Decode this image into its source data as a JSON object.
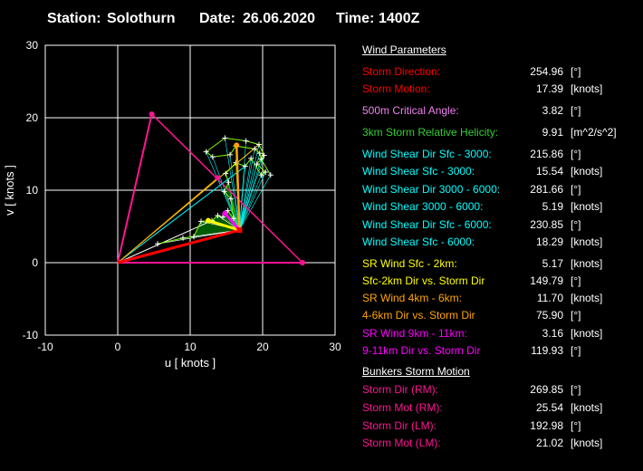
{
  "header": {
    "station_label": "Station:",
    "station": "Solothurn",
    "date_label": "Date:",
    "date": "26.06.2020",
    "time_label": "Time:",
    "time": "1400Z"
  },
  "colors": {
    "red": "#ff0000",
    "crimson": "#ff1493",
    "violet": "#ee82ee",
    "green": "#32cd32",
    "cyan": "#00ffff",
    "yellow": "#ffff00",
    "orange": "#ffa500",
    "magenta": "#ff00ff"
  },
  "wind_parameters": {
    "title": "Wind Parameters",
    "rows": [
      {
        "label": "Storm Direction:",
        "value": "254.96",
        "unit": "[°]",
        "color": "#ff0000"
      },
      {
        "label": "Storm Motion:",
        "value": "17.39",
        "unit": "[knots]",
        "color": "#ff0000"
      },
      {
        "label": "500m Critical Angle:",
        "value": "3.82",
        "unit": "[°]",
        "color": "#ee82ee"
      },
      {
        "label": "3km Storm Relative Helicity:",
        "value": "9.91",
        "unit": "[m^2/s^2]",
        "color": "#32cd32"
      },
      {
        "label": "Wind Shear Dir Sfc - 3000:",
        "value": "215.86",
        "unit": "[°]",
        "color": "#00ffff"
      },
      {
        "label": "Wind Shear Sfc - 3000:",
        "value": "15.54",
        "unit": "[knots]",
        "color": "#00ffff"
      },
      {
        "label": "Wind Shear Dir 3000 - 6000:",
        "value": "281.66",
        "unit": "[°]",
        "color": "#00ffff"
      },
      {
        "label": "Wind Shear 3000 - 6000:",
        "value": "5.19",
        "unit": "[knots]",
        "color": "#00ffff"
      },
      {
        "label": "Wind Shear Dir Sfc - 6000:",
        "value": "230.85",
        "unit": "[°]",
        "color": "#00ffff"
      },
      {
        "label": "Wind Shear Sfc - 6000:",
        "value": "18.29",
        "unit": "[knots]",
        "color": "#00ffff"
      },
      {
        "label": "SR Wind Sfc - 2km:",
        "value": "5.17",
        "unit": "[knots]",
        "color": "#ffff00"
      },
      {
        "label": "Sfc-2km Dir vs. Storm Dir",
        "value": "149.79",
        "unit": "[°]",
        "color": "#ffff00"
      },
      {
        "label": "SR Wind 4km - 6km:",
        "value": "11.70",
        "unit": "[knots]",
        "color": "#ffa500"
      },
      {
        "label": "4-6km Dir vs. Storm Dir",
        "value": "75.90",
        "unit": "[°]",
        "color": "#ffa500"
      },
      {
        "label": "SR Wind 9km - 11km:",
        "value": "3.16",
        "unit": "[knots]",
        "color": "#ff00ff"
      },
      {
        "label": "9-11km Dir vs. Storm Dir",
        "value": "119.93",
        "unit": "[°]",
        "color": "#ff00ff"
      }
    ]
  },
  "bunkers": {
    "title": "Bunkers Storm Motion",
    "rows": [
      {
        "label": "Storm Dir (RM):",
        "value": "269.85",
        "unit": "[°]",
        "color": "#ff1493"
      },
      {
        "label": "Storm Mot (RM):",
        "value": "25.54",
        "unit": "[knots]",
        "color": "#ff1493"
      },
      {
        "label": "Storm Dir (LM):",
        "value": "192.98",
        "unit": "[°]",
        "color": "#ff1493"
      },
      {
        "label": "Storm Mot (LM):",
        "value": "21.02",
        "unit": "[knots]",
        "color": "#ff1493"
      }
    ]
  },
  "chart_data": {
    "type": "scatter",
    "title": "",
    "xlabel": "u  [ knots ]",
    "ylabel": "v  [ knots ]",
    "xlim": [
      -10,
      30
    ],
    "ylim": [
      -10,
      30
    ],
    "xticks": [
      -10,
      0,
      10,
      20,
      30
    ],
    "yticks": [
      -10,
      0,
      10,
      20,
      30
    ],
    "grid": true,
    "hodograph": [
      [
        0,
        0
      ],
      [
        5.5,
        2.6
      ],
      [
        9,
        3.4
      ],
      [
        10.5,
        3.6
      ],
      [
        11.5,
        5.7
      ],
      [
        13,
        5.8
      ],
      [
        13.8,
        6.5
      ],
      [
        14.5,
        6.3
      ],
      [
        15.2,
        7.2
      ],
      [
        16,
        6.1
      ],
      [
        15.6,
        8.8
      ],
      [
        14.7,
        9.8
      ],
      [
        15.3,
        11.1
      ],
      [
        14.9,
        12.3
      ],
      [
        16.3,
        13.8
      ],
      [
        17.6,
        13.3
      ],
      [
        18.4,
        14.4
      ],
      [
        19.8,
        12.1
      ],
      [
        20.4,
        12.5
      ],
      [
        19.2,
        13.6
      ],
      [
        20.2,
        14.8
      ],
      [
        19.5,
        16.3
      ],
      [
        17.7,
        16.8
      ],
      [
        14.8,
        17.2
      ],
      [
        12.2,
        15.3
      ],
      [
        13.1,
        14.6
      ],
      [
        15.5,
        14.9
      ],
      [
        16.3,
        16.1
      ],
      [
        18.9,
        15.7
      ],
      [
        19.6,
        15.1
      ],
      [
        19.8,
        14.3
      ],
      [
        21.1,
        12.1
      ]
    ],
    "markers": {
      "storm_motion": [
        16.8,
        4.5
      ],
      "right_mover": [
        25.5,
        0
      ],
      "left_mover": [
        4.7,
        20.5
      ],
      "mean_wind": [
        13.8,
        11.7
      ],
      "sfc_2km_mean": [
        12.5,
        5.8
      ],
      "km4_6_mean": [
        16.4,
        16.2
      ],
      "km9_11_mean": [
        14.8,
        6.8
      ]
    }
  }
}
